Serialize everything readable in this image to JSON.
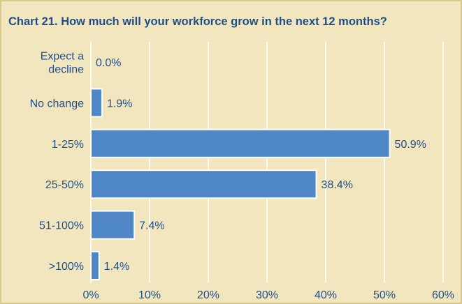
{
  "chart_data": {
    "type": "bar",
    "orientation": "horizontal",
    "title": "Chart 21. How much will your workforce grow in the next 12 months?",
    "categories": [
      [
        "Expect a",
        "decline"
      ],
      [
        "No change"
      ],
      [
        "1-25%"
      ],
      [
        "25-50%"
      ],
      [
        "51-100%"
      ],
      [
        ">100%"
      ]
    ],
    "values": [
      0.0,
      1.9,
      50.9,
      38.4,
      7.4,
      1.4
    ],
    "data_labels": [
      "0.0%",
      "1.9%",
      "50.9%",
      "38.4%",
      "7.4%",
      "1.4%"
    ],
    "xlim": [
      0,
      60
    ],
    "xticks": [
      0,
      10,
      20,
      30,
      40,
      50,
      60
    ],
    "xtick_labels": [
      "0%",
      "10%",
      "20%",
      "30%",
      "40%",
      "50%",
      "60%"
    ],
    "xlabel": "",
    "ylabel": "",
    "grid": "vertical",
    "legend": "none",
    "colors": {
      "bar": "#4f86c6",
      "bar_edge": "#ffffff",
      "text": "#1f4e8c",
      "background": "#f2e6bf",
      "grid": "#ffffff"
    }
  }
}
